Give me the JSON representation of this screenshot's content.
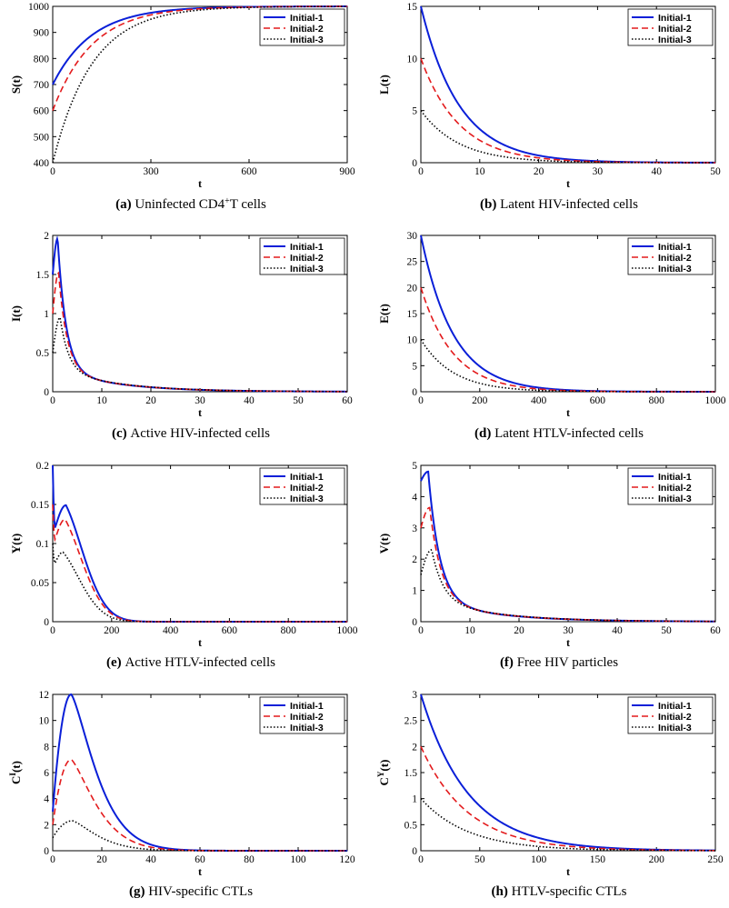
{
  "figure": {
    "legend_entries": [
      "Initial-1",
      "Initial-2",
      "Initial-3"
    ],
    "series_styles": [
      {
        "name": "Initial-1",
        "color": "#0a1fd8",
        "line": "solid"
      },
      {
        "name": "Initial-2",
        "color": "#e31a1c",
        "line": "dashed"
      },
      {
        "name": "Initial-3",
        "color": "#000000",
        "line": "dotted"
      }
    ]
  },
  "chart_data": [
    {
      "id": "a",
      "type": "line",
      "caption_letter": "(a)",
      "caption_pre": "Uninfected CD4",
      "caption_sup": "+",
      "caption_post": "T cells",
      "xlabel": "t",
      "ylabel": "S(t)",
      "ylabel_sup": "",
      "xlim": [
        0,
        900
      ],
      "ylim": [
        400,
        1000
      ],
      "xticks": [
        0,
        300,
        600,
        900
      ],
      "yticks": [
        400,
        500,
        600,
        700,
        800,
        900,
        1000
      ],
      "model": "approach",
      "series": [
        {
          "name": "Initial-1",
          "start": 700,
          "final": 1000,
          "tau": 120
        },
        {
          "name": "Initial-2",
          "start": 600,
          "final": 1000,
          "tau": 120
        },
        {
          "name": "Initial-3",
          "start": 400,
          "final": 1000,
          "tau": 120
        }
      ]
    },
    {
      "id": "b",
      "type": "line",
      "caption_letter": "(b)",
      "caption_pre": "Latent HIV-infected cells",
      "caption_sup": "",
      "caption_post": "",
      "xlabel": "t",
      "ylabel": "L(t)",
      "ylabel_sup": "",
      "xlim": [
        0,
        50
      ],
      "ylim": [
        0,
        15
      ],
      "xticks": [
        0,
        10,
        20,
        30,
        40,
        50
      ],
      "yticks": [
        0,
        5,
        10,
        15
      ],
      "model": "decay",
      "series": [
        {
          "name": "Initial-1",
          "start": 15,
          "tau": 6.5
        },
        {
          "name": "Initial-2",
          "start": 10,
          "tau": 6.5
        },
        {
          "name": "Initial-3",
          "start": 5,
          "tau": 6.5
        }
      ]
    },
    {
      "id": "c",
      "type": "line",
      "caption_letter": "(c)",
      "caption_pre": "Active HIV-infected cells",
      "caption_sup": "",
      "caption_post": "",
      "xlabel": "t",
      "ylabel": "I(t)",
      "ylabel_sup": "",
      "xlim": [
        0,
        60
      ],
      "ylim": [
        0,
        2
      ],
      "xticks": [
        0,
        10,
        20,
        30,
        40,
        50,
        60
      ],
      "yticks": [
        0,
        0.5,
        1,
        1.5,
        2
      ],
      "model": "peak",
      "series": [
        {
          "name": "Initial-1",
          "start": 1.5,
          "peak": 1.96,
          "tpeak": 1.0,
          "slow_amp": 0.28,
          "slow_tau": 12,
          "fast_tau": 1.7
        },
        {
          "name": "Initial-2",
          "start": 1.0,
          "peak": 1.52,
          "tpeak": 1.2,
          "slow_amp": 0.28,
          "slow_tau": 12,
          "fast_tau": 1.7
        },
        {
          "name": "Initial-3",
          "start": 0.5,
          "peak": 0.95,
          "tpeak": 1.5,
          "slow_amp": 0.28,
          "slow_tau": 12,
          "fast_tau": 1.7
        }
      ]
    },
    {
      "id": "d",
      "type": "line",
      "caption_letter": "(d)",
      "caption_pre": "Latent HTLV-infected cells",
      "caption_sup": "",
      "caption_post": "",
      "xlabel": "t",
      "ylabel": "E(t)",
      "ylabel_sup": "",
      "xlim": [
        0,
        1000
      ],
      "ylim": [
        0,
        30
      ],
      "xticks": [
        0,
        200,
        400,
        600,
        800,
        1000
      ],
      "yticks": [
        0,
        5,
        10,
        15,
        20,
        25,
        30
      ],
      "model": "decay",
      "series": [
        {
          "name": "Initial-1",
          "start": 30,
          "tau": 110
        },
        {
          "name": "Initial-2",
          "start": 20,
          "tau": 110
        },
        {
          "name": "Initial-3",
          "start": 10,
          "tau": 110
        }
      ]
    },
    {
      "id": "e",
      "type": "line",
      "caption_letter": "(e)",
      "caption_pre": "Active HTLV-infected cells",
      "caption_sup": "",
      "caption_post": "",
      "xlabel": "t",
      "ylabel": "Y(t)",
      "ylabel_sup": "",
      "xlim": [
        0,
        1000
      ],
      "ylim": [
        0,
        0.2
      ],
      "xticks": [
        0,
        200,
        400,
        600,
        800,
        1000
      ],
      "yticks": [
        0,
        0.05,
        0.1,
        0.15,
        0.2
      ],
      "model": "dip_hump",
      "series": [
        {
          "name": "Initial-1",
          "start": 0.2,
          "dip": 0.12,
          "dip_t": 8,
          "peak": 0.149,
          "tpeak": 45,
          "sigma": 70,
          "tail_tau": 110
        },
        {
          "name": "Initial-2",
          "start": 0.15,
          "dip": 0.105,
          "dip_t": 8,
          "peak": 0.131,
          "tpeak": 42,
          "sigma": 70,
          "tail_tau": 110
        },
        {
          "name": "Initial-3",
          "start": 0.1,
          "dip": 0.075,
          "dip_t": 8,
          "peak": 0.089,
          "tpeak": 35,
          "sigma": 70,
          "tail_tau": 110
        }
      ]
    },
    {
      "id": "f",
      "type": "line",
      "caption_letter": "(f)",
      "caption_pre": "Free HIV particles",
      "caption_sup": "",
      "caption_post": "",
      "xlabel": "t",
      "ylabel": "V(t)",
      "ylabel_sup": "",
      "xlim": [
        0,
        60
      ],
      "ylim": [
        0,
        5
      ],
      "xticks": [
        0,
        10,
        20,
        30,
        40,
        50,
        60
      ],
      "yticks": [
        0,
        1,
        2,
        3,
        4,
        5
      ],
      "model": "peak",
      "series": [
        {
          "name": "Initial-1",
          "start": 4.5,
          "peak": 4.8,
          "tpeak": 1.5,
          "slow_amp": 0.7,
          "slow_tau": 13,
          "fast_tau": 2.3
        },
        {
          "name": "Initial-2",
          "start": 3.0,
          "peak": 3.65,
          "tpeak": 1.8,
          "slow_amp": 0.7,
          "slow_tau": 13,
          "fast_tau": 2.3
        },
        {
          "name": "Initial-3",
          "start": 1.5,
          "peak": 2.3,
          "tpeak": 2.2,
          "slow_amp": 0.7,
          "slow_tau": 13,
          "fast_tau": 2.3
        }
      ]
    },
    {
      "id": "g",
      "type": "line",
      "caption_letter": "(g)",
      "caption_pre": "HIV-specific CTLs",
      "caption_sup": "",
      "caption_post": "",
      "xlabel": "t",
      "ylabel": "C",
      "ylabel_sup": "I",
      "ylabel_post": "(t)",
      "xlim": [
        0,
        120
      ],
      "ylim": [
        0,
        12
      ],
      "xticks": [
        0,
        20,
        40,
        60,
        80,
        100,
        120
      ],
      "yticks": [
        0,
        2,
        4,
        6,
        8,
        10,
        12
      ],
      "model": "hump",
      "series": [
        {
          "name": "Initial-1",
          "start": 3,
          "peak": 12.0,
          "tpeak": 7.5,
          "rise_tau": 2.8,
          "fall_tau": 11
        },
        {
          "name": "Initial-2",
          "start": 2,
          "peak": 7.0,
          "tpeak": 7.5,
          "rise_tau": 2.8,
          "fall_tau": 11
        },
        {
          "name": "Initial-3",
          "start": 1,
          "peak": 2.3,
          "tpeak": 8.0,
          "rise_tau": 2.8,
          "fall_tau": 11
        }
      ]
    },
    {
      "id": "h",
      "type": "line",
      "caption_letter": "(h)",
      "caption_pre": "HTLV-specific CTLs",
      "caption_sup": "",
      "caption_post": "",
      "xlabel": "t",
      "ylabel": "C",
      "ylabel_sup": "Y",
      "ylabel_post": "(t)",
      "xlim": [
        0,
        250
      ],
      "ylim": [
        0,
        3
      ],
      "xticks": [
        0,
        50,
        100,
        150,
        200,
        250
      ],
      "yticks": [
        0,
        0.5,
        1,
        1.5,
        2,
        2.5,
        3
      ],
      "model": "decay",
      "series": [
        {
          "name": "Initial-1",
          "start": 3,
          "tau": 40
        },
        {
          "name": "Initial-2",
          "start": 2,
          "tau": 40
        },
        {
          "name": "Initial-3",
          "start": 1,
          "tau": 40
        }
      ]
    }
  ]
}
